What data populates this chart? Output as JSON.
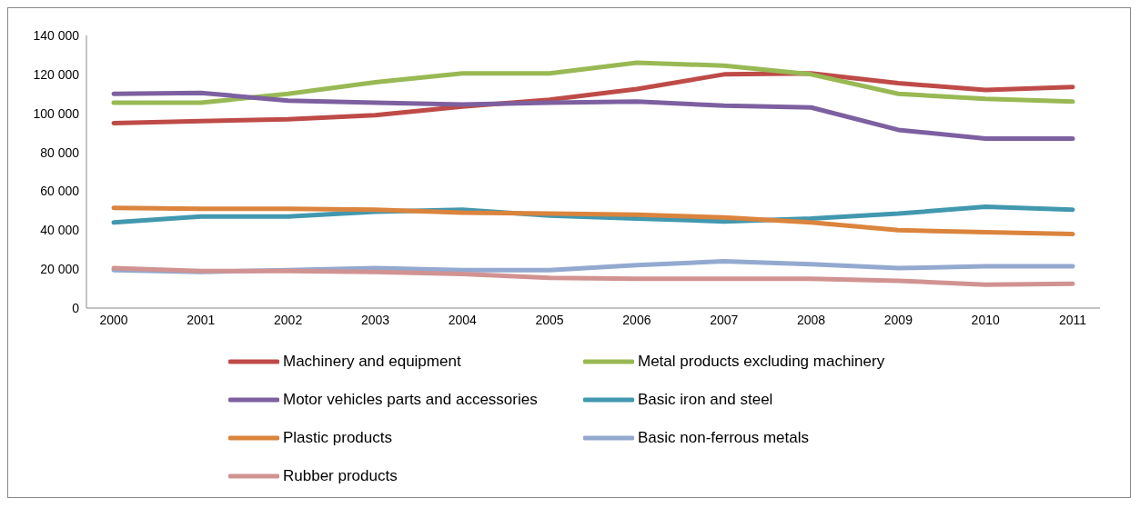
{
  "chart_data": {
    "type": "line",
    "categories": [
      "2000",
      "2001",
      "2002",
      "2003",
      "2004",
      "2005",
      "2006",
      "2007",
      "2008",
      "2009",
      "2010",
      "2011"
    ],
    "series": [
      {
        "name": "Machinery and equipment",
        "color": "#be4b48",
        "values": [
          95000,
          96000,
          97000,
          99000,
          103500,
          107000,
          112500,
          120000,
          120500,
          115500,
          112000,
          113500
        ]
      },
      {
        "name": "Metal products excluding machinery",
        "color": "#98b954",
        "values": [
          105500,
          105500,
          110000,
          116000,
          120500,
          120500,
          126000,
          124500,
          120000,
          110000,
          107500,
          106000
        ]
      },
      {
        "name": "Motor vehicles parts and accessories",
        "color": "#7d60a0",
        "values": [
          110000,
          110500,
          106500,
          105500,
          104500,
          105500,
          106000,
          104000,
          103000,
          91500,
          87000,
          87000
        ]
      },
      {
        "name": "Basic iron and steel",
        "color": "#4198af",
        "values": [
          44000,
          47000,
          47000,
          49500,
          50500,
          47500,
          46000,
          44500,
          46000,
          48500,
          52000,
          50500
        ]
      },
      {
        "name": "Plastic products",
        "color": "#db843d",
        "values": [
          51500,
          51000,
          51000,
          50500,
          49000,
          48500,
          48000,
          46500,
          44000,
          40000,
          39000,
          38000
        ]
      },
      {
        "name": "Basic non-ferrous metals",
        "color": "#93a9cf",
        "values": [
          19500,
          18500,
          19500,
          20500,
          19500,
          19500,
          22000,
          24000,
          22500,
          20500,
          21500,
          21500
        ]
      },
      {
        "name": "Rubber products",
        "color": "#d19392",
        "values": [
          20500,
          19000,
          19000,
          18500,
          17500,
          15500,
          15000,
          15000,
          15000,
          14000,
          12000,
          12500
        ]
      }
    ],
    "ylim": [
      0,
      140000
    ],
    "yticks": [
      0,
      {
        "value": 20000,
        "label": "20 000"
      },
      {
        "value": 40000,
        "label": "40 000"
      },
      {
        "value": 60000,
        "label": "60 000"
      },
      {
        "value": 80000,
        "label": "80 000"
      },
      {
        "value": 100000,
        "label": "100 000"
      },
      {
        "value": 120000,
        "label": "120 000"
      },
      {
        "value": 140000,
        "label": "140 000"
      }
    ],
    "grid": false,
    "legend": "bottom",
    "marker": "none",
    "line_style": "solid"
  }
}
